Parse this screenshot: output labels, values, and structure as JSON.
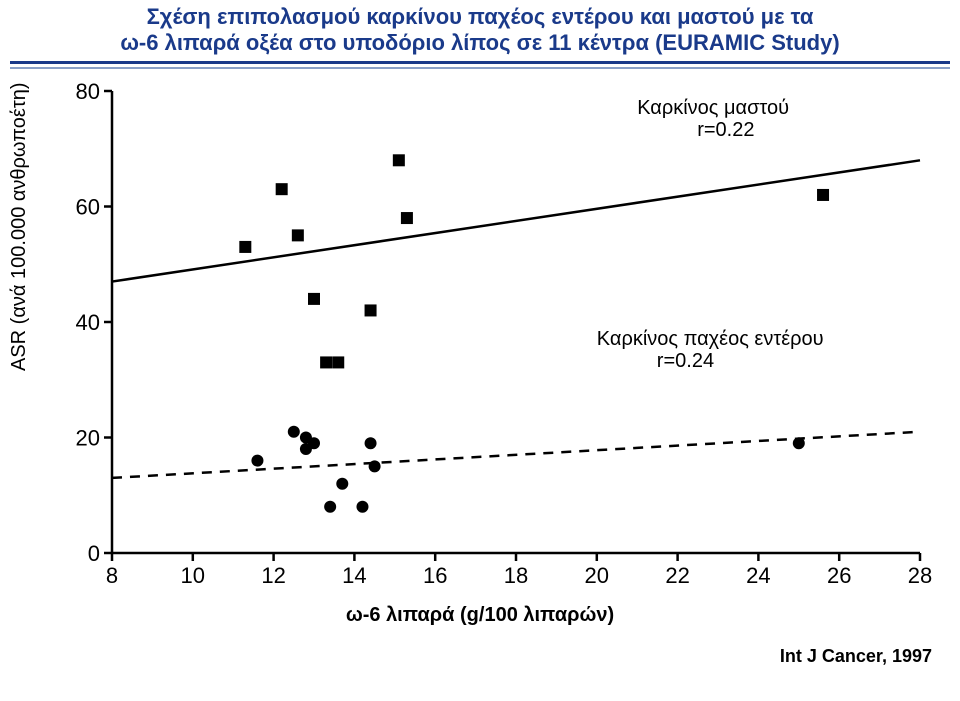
{
  "title_line1": "Σχέση επιπολασμού καρκίνου παχέος εντέρου και μαστού με τα",
  "title_line2": "ω-6 λιπαρά οξέα στο υποδόριο λίπος σε 11 κέντρα (EURAMIC Study)",
  "title_color": "#1a3a8a",
  "title_fontsize": 22,
  "title_fontweight": 700,
  "rule_colors": [
    "#1a3a8a",
    "#8aa0c8"
  ],
  "ylabel": "ASR (ανά 100.000 ανθρωποέτη)",
  "xlabel": "ω-6 λιπαρά (g/100 λιπαρών)",
  "citation": "Int J Cancer, 1997",
  "axis_label_fontsize": 20,
  "xlabel_fontweight": 700,
  "citation_fontweight": 700,
  "chart": {
    "type": "scatter",
    "xlim": [
      8,
      28
    ],
    "ylim": [
      0,
      80
    ],
    "xticks": [
      8,
      10,
      12,
      14,
      16,
      18,
      20,
      22,
      24,
      26,
      28
    ],
    "yticks": [
      0,
      20,
      40,
      60,
      80
    ],
    "tick_fontsize": 22,
    "tick_color": "#000000",
    "axis_color": "#000000",
    "axis_width": 2.5,
    "tick_mark_len": 8,
    "background_color": "#ffffff",
    "series": [
      {
        "name": "breast_cancer",
        "marker": "square",
        "marker_size": 12,
        "marker_color": "#000000",
        "points": [
          [
            11.3,
            53
          ],
          [
            12.2,
            63
          ],
          [
            12.6,
            55
          ],
          [
            13.0,
            44
          ],
          [
            13.3,
            33
          ],
          [
            13.6,
            33
          ],
          [
            14.4,
            42
          ],
          [
            15.1,
            68
          ],
          [
            15.3,
            58
          ],
          [
            25.6,
            62
          ]
        ],
        "fit_line": {
          "style": "solid",
          "width": 2.5,
          "color": "#000000",
          "y_at_xmin": 47,
          "y_at_xmax": 68
        },
        "annotation": {
          "text1": "Καρκίνος μαστού",
          "text2": "r=0.22",
          "x": 21.0,
          "y": 76,
          "fontsize": 20
        }
      },
      {
        "name": "colon_cancer",
        "marker": "circle",
        "marker_size": 12,
        "marker_color": "#000000",
        "points": [
          [
            11.6,
            16
          ],
          [
            12.5,
            21
          ],
          [
            12.8,
            18
          ],
          [
            12.8,
            20
          ],
          [
            13.0,
            19
          ],
          [
            13.4,
            8
          ],
          [
            13.7,
            12
          ],
          [
            14.2,
            8
          ],
          [
            14.4,
            19
          ],
          [
            14.5,
            15
          ],
          [
            25.0,
            19
          ]
        ],
        "fit_line": {
          "style": "dashed",
          "width": 2.5,
          "dash": "10,8",
          "color": "#000000",
          "y_at_xmin": 13,
          "y_at_xmax": 21
        },
        "annotation": {
          "text1": "Καρκίνος παχέος εντέρου",
          "text2": "r=0.24",
          "x": 20.0,
          "y": 36,
          "fontsize": 20
        }
      }
    ]
  }
}
